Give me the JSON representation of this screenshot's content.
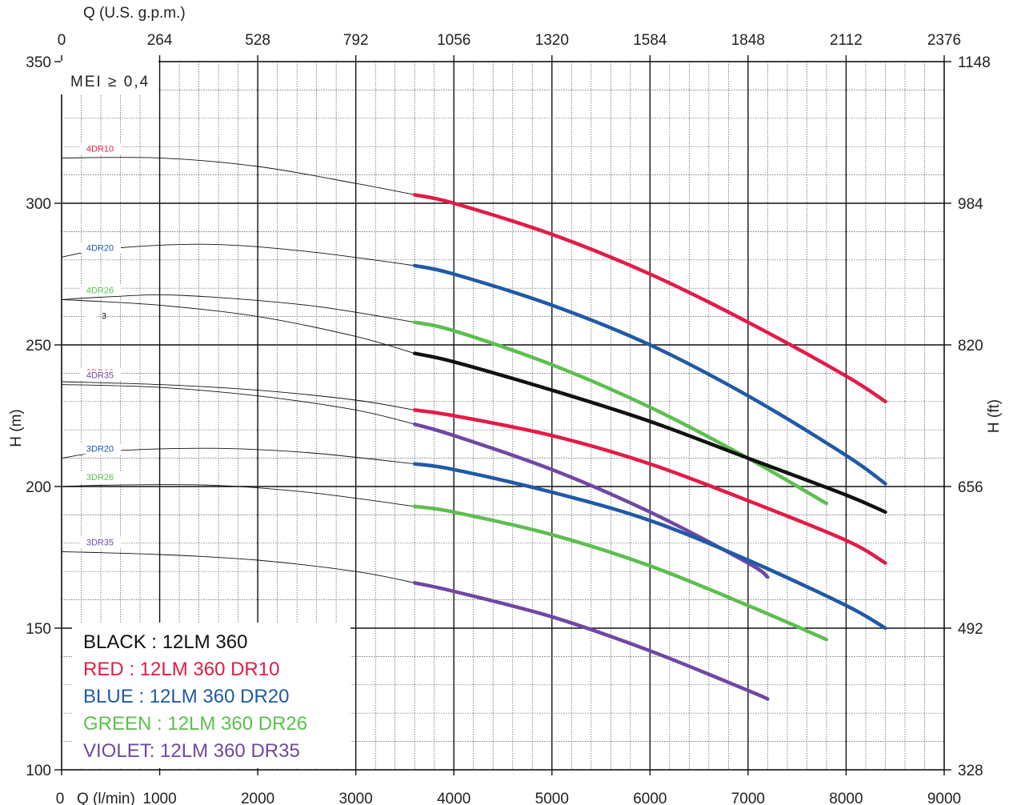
{
  "chart_data": {
    "type": "line",
    "top_axis": {
      "label": "Q (U.S. g.p.m.)",
      "ticks": [
        "0",
        "264",
        "528",
        "792",
        "1056",
        "1320",
        "1584",
        "1848",
        "2112",
        "2376"
      ]
    },
    "x_axis": {
      "label": "Q (l/min)",
      "range": [
        0,
        9000
      ],
      "ticks": [
        "0",
        "1000",
        "2000",
        "3000",
        "4000",
        "5000",
        "6000",
        "7000",
        "8000",
        "9000"
      ]
    },
    "y_axis": {
      "label": "H (m)",
      "range": [
        100,
        350
      ],
      "ticks": [
        "100",
        "150",
        "200",
        "250",
        "300",
        "350"
      ]
    },
    "y2_axis": {
      "label": "H (ft)",
      "ticks": [
        "328",
        "492",
        "656",
        "820",
        "984",
        "1148"
      ]
    },
    "grid": true,
    "note": "MEI ≥ 0,4",
    "legend": [
      {
        "text": "BLACK : 12LM 360",
        "color": "#111111"
      },
      {
        "text": "RED : 12LM 360 DR10",
        "color": "#e31b48"
      },
      {
        "text": "BLUE :  12LM 360  DR20",
        "color": "#1f5aa6"
      },
      {
        "text": "GREEN :  12LM 360  DR26",
        "color": "#5cbf4f"
      },
      {
        "text": "VIOLET:  12LM 360 DR35",
        "color": "#6f47a3"
      }
    ],
    "series": [
      {
        "name": "4DR10",
        "color": "#e31b48",
        "x": [
          0,
          1000,
          2000,
          3000,
          3600,
          4000,
          5000,
          6000,
          7000,
          8000,
          8400
        ],
        "y": [
          316,
          316,
          313,
          307,
          303,
          300,
          289,
          275,
          258,
          239,
          230
        ]
      },
      {
        "name": "4DR20",
        "color": "#1f5aa6",
        "x": [
          0,
          500,
          1500,
          2500,
          3600,
          4000,
          5000,
          6000,
          7000,
          8000,
          8400
        ],
        "y": [
          281,
          284,
          285.5,
          283,
          278,
          275,
          264,
          250,
          232,
          211,
          201
        ]
      },
      {
        "name": "4DR26",
        "color": "#5cbf4f",
        "x": [
          0,
          500,
          1200,
          2500,
          3600,
          4000,
          5000,
          6000,
          7000,
          7800
        ],
        "y": [
          266,
          267,
          267.5,
          264,
          258,
          255,
          243,
          228,
          210,
          194
        ]
      },
      {
        "name": "3",
        "color": "#111111",
        "x": [
          0,
          1000,
          2000,
          3000,
          3600,
          4000,
          5000,
          6000,
          7000,
          8000,
          8400
        ],
        "y": [
          266,
          264,
          260,
          253,
          247,
          244,
          234,
          223,
          210,
          197,
          191
        ]
      },
      {
        "name": "3DR10",
        "color": "#e31b48",
        "x": [
          0,
          1000,
          2000,
          3000,
          3600,
          4000,
          5000,
          6000,
          7000,
          8000,
          8400
        ],
        "y": [
          237,
          236,
          234,
          230.5,
          227,
          225,
          218,
          208,
          195,
          181,
          173
        ]
      },
      {
        "name": "4DR35",
        "color": "#6f47a3",
        "x": [
          0,
          1000,
          2000,
          3000,
          3600,
          4000,
          5000,
          6000,
          7000,
          7200
        ],
        "y": [
          236,
          235,
          232,
          227,
          222,
          218,
          206,
          191,
          173,
          168
        ]
      },
      {
        "name": "3DR20",
        "color": "#1f5aa6",
        "x": [
          0,
          500,
          1500,
          2500,
          3600,
          4000,
          5000,
          6000,
          7000,
          8000,
          8400
        ],
        "y": [
          210,
          212.5,
          213.5,
          212,
          208,
          206,
          198,
          188,
          174,
          158,
          150
        ]
      },
      {
        "name": "3DR26",
        "color": "#5cbf4f",
        "x": [
          0,
          500,
          1500,
          2500,
          3600,
          4000,
          5000,
          6000,
          7000,
          7800
        ],
        "y": [
          200,
          200.5,
          200.5,
          198,
          193,
          191,
          183,
          172,
          158,
          146
        ]
      },
      {
        "name": "3DR35",
        "color": "#6f47a3",
        "x": [
          0,
          1000,
          2000,
          3000,
          3600,
          4000,
          5000,
          6000,
          7000,
          7200
        ],
        "y": [
          177,
          176,
          174,
          170,
          166,
          163,
          154,
          142,
          128,
          125
        ]
      }
    ]
  }
}
